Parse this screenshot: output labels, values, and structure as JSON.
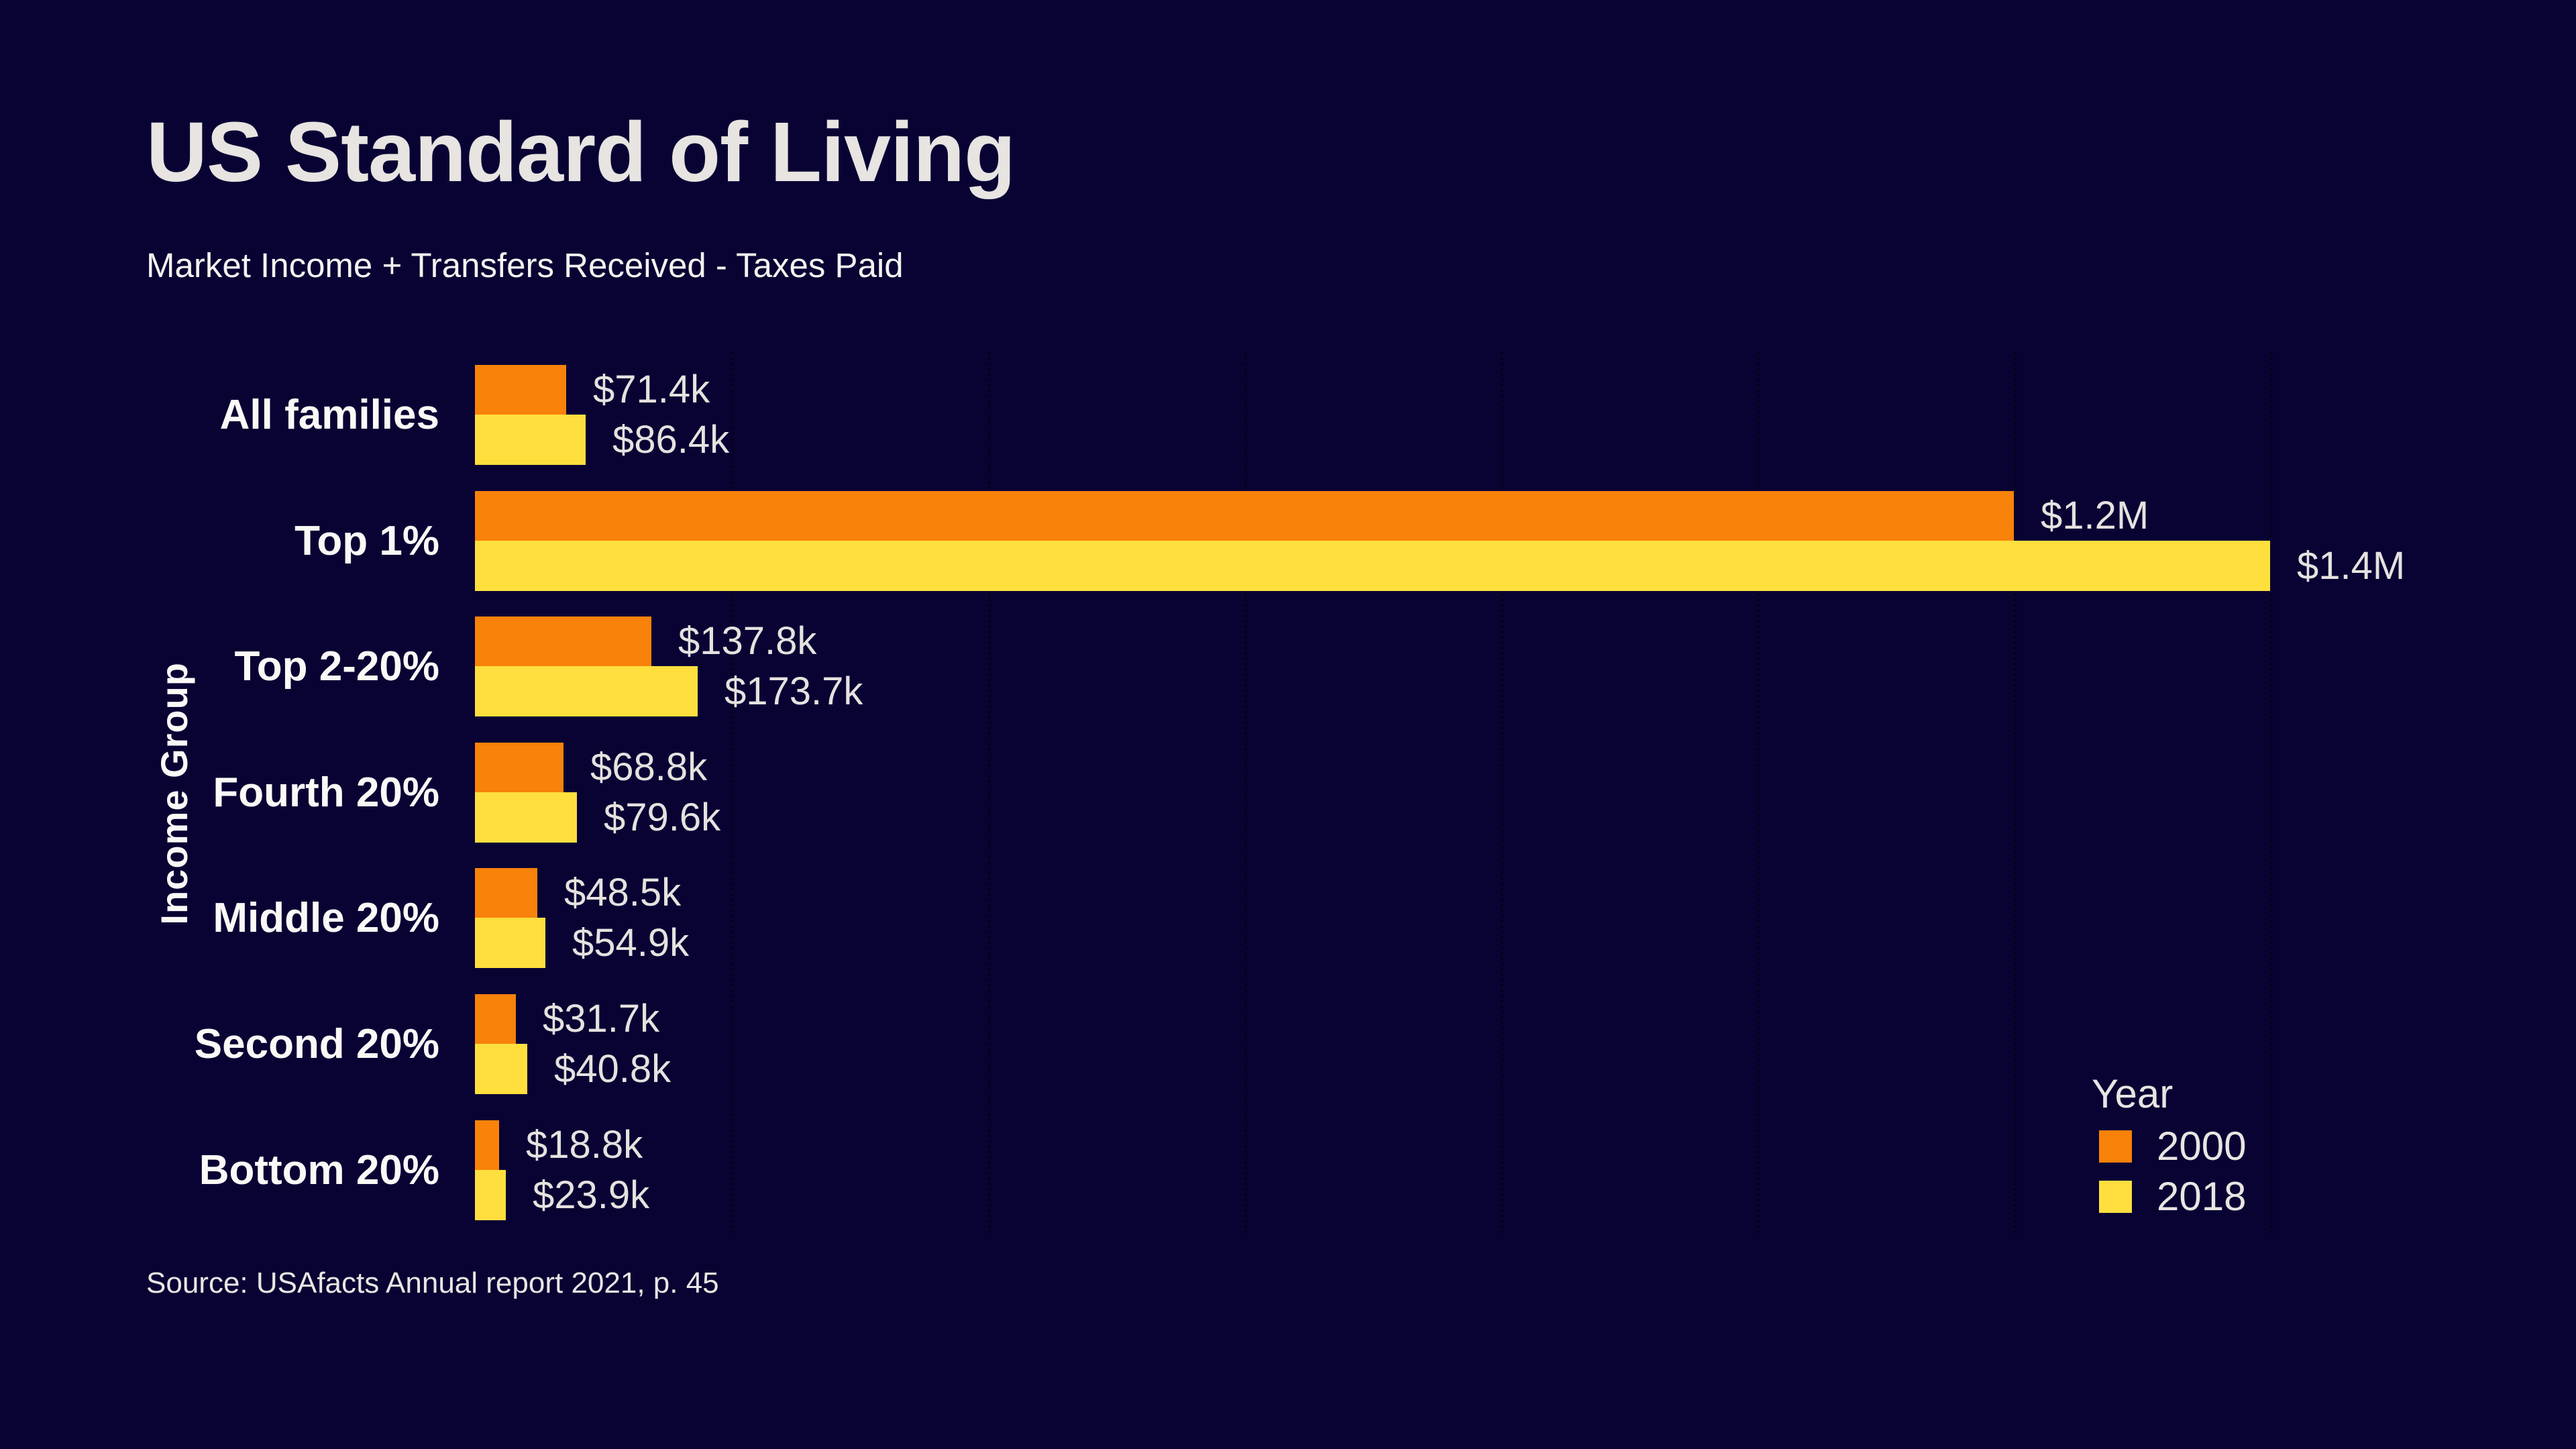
{
  "title": "US Standard of Living",
  "subtitle": "Market Income + Transfers Received - Taxes Paid",
  "source_note": "Source: USAfacts Annual report 2021, p. 45",
  "colors": {
    "background": "#090334",
    "bar_2000": "#F8820A",
    "bar_2018": "#FFDF3E",
    "text_light": "#E7E4E1",
    "text_white": "#FBF9F6",
    "gridline": "rgba(0,0,0,0.5)"
  },
  "legend": {
    "title": "Year",
    "items": [
      {
        "label": "2000",
        "color": "#F8820A"
      },
      {
        "label": "2018",
        "color": "#FFDF3E"
      }
    ]
  },
  "chart_data": {
    "type": "bar",
    "orientation": "horizontal",
    "title": "US Standard of Living",
    "subtitle": "Market Income + Transfers Received - Taxes Paid",
    "xlabel": "",
    "ylabel": "Income Group",
    "xlim": [
      0,
      1400000
    ],
    "gridline_step": 200000,
    "grid": "dotted-vertical",
    "legend_position": "inside-right-bottom",
    "categories": [
      "All families",
      "Top 1%",
      "Top 2-20%",
      "Fourth 20%",
      "Middle 20%",
      "Second 20%",
      "Bottom 20%"
    ],
    "series": [
      {
        "name": "2000",
        "color": "#F8820A",
        "values_usd": [
          71400,
          1200000,
          137800,
          68800,
          48500,
          31700,
          18800
        ],
        "labels": [
          "$71.4k",
          "$1.2M",
          "$137.8k",
          "$68.8k",
          "$48.5k",
          "$31.7k",
          "$18.8k"
        ]
      },
      {
        "name": "2018",
        "color": "#FFDF3E",
        "values_usd": [
          86400,
          1400000,
          173700,
          79600,
          54900,
          40800,
          23900
        ],
        "labels": [
          "$86.4k",
          "$1.4M",
          "$173.7k",
          "$79.6k",
          "$54.9k",
          "$40.8k",
          "$23.9k"
        ]
      }
    ]
  }
}
